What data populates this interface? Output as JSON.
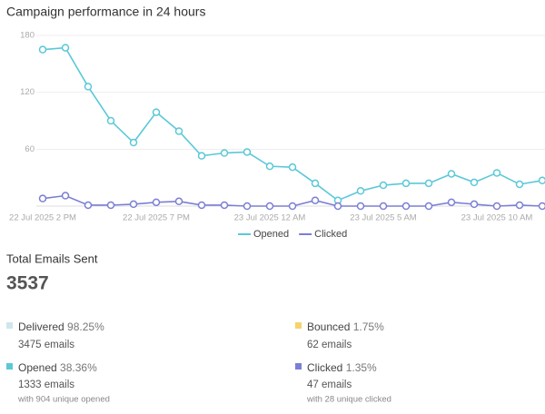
{
  "chart_data": {
    "type": "line",
    "title": "Campaign performance in 24 hours",
    "categories": [
      "22 Jul 2025 2 PM",
      null,
      null,
      null,
      null,
      "22 Jul 2025 7 PM",
      null,
      null,
      null,
      null,
      "23 Jul 2025 12 AM",
      null,
      null,
      null,
      null,
      "23 Jul 2025 5 AM",
      null,
      null,
      null,
      null,
      "23 Jul 2025 10 AM",
      null,
      null
    ],
    "series": [
      {
        "name": "Opened",
        "color": "#5bc8d8",
        "values": [
          165,
          167,
          126,
          90,
          67,
          99,
          79,
          53,
          56,
          57,
          42,
          41,
          24,
          6,
          16,
          22,
          24,
          24,
          34,
          25,
          35,
          23,
          27
        ]
      },
      {
        "name": "Clicked",
        "color": "#7b7fd4",
        "values": [
          8,
          11,
          1,
          1,
          2,
          4,
          5,
          1,
          1,
          0,
          0,
          0,
          6,
          0,
          0,
          0,
          0,
          0,
          4,
          2,
          0,
          1,
          0
        ]
      }
    ],
    "ylim": [
      0,
      180
    ],
    "yticks": [
      60,
      120,
      180
    ],
    "grid": true,
    "legend": "bottom"
  },
  "summary": {
    "label": "Total Emails Sent",
    "total": "3537"
  },
  "stats": [
    {
      "name": "Delivered",
      "percent": "98.25%",
      "count": "3475 emails"
    },
    {
      "name": "Bounced",
      "percent": "1.75%",
      "count": "62 emails"
    },
    {
      "name": "Opened",
      "percent": "38.36%",
      "count": "1333 emails",
      "note": "with 904 unique opened"
    },
    {
      "name": "Clicked",
      "percent": "1.35%",
      "count": "47 emails",
      "note": "with 28 unique clicked"
    }
  ]
}
